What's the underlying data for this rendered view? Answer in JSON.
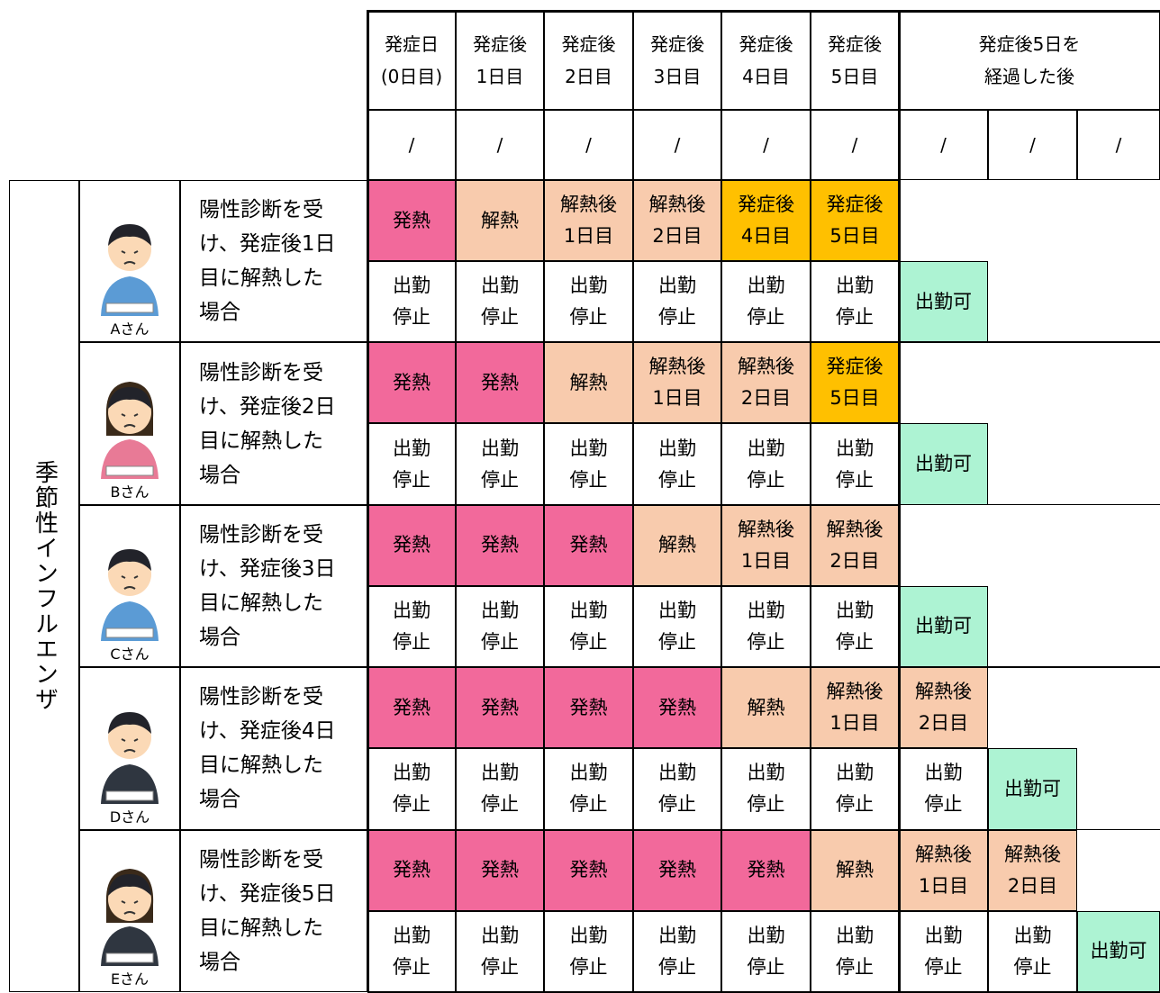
{
  "header": {
    "days": [
      [
        "発症日",
        "(0日目)"
      ],
      [
        "発症後",
        "1日目"
      ],
      [
        "発症後",
        "2日目"
      ],
      [
        "発症後",
        "3日目"
      ],
      [
        "発症後",
        "4日目"
      ],
      [
        "発症後",
        "5日目"
      ]
    ],
    "after": [
      "発症後5日を",
      "経過した後"
    ],
    "dates": [
      "/",
      "/",
      "/",
      "/",
      "/",
      "/",
      "/",
      "/",
      "/"
    ]
  },
  "category": "季節性インフルエンザ",
  "people": [
    {
      "name": "Aさん",
      "description": [
        "陽性診断を受",
        "け、発症後1日",
        "目に解熱した",
        "場合"
      ],
      "status": [
        {
          "text": [
            "発熱"
          ],
          "color": "#f2699b"
        },
        {
          "text": [
            "解熱"
          ],
          "color": "#f8cbad"
        },
        {
          "text": [
            "解熱後",
            "1日目"
          ],
          "color": "#f8cbad"
        },
        {
          "text": [
            "解熱後",
            "2日目"
          ],
          "color": "#f8cbad"
        },
        {
          "text": [
            "発症後",
            "4日目"
          ],
          "color": "#ffc000"
        },
        {
          "text": [
            "発症後",
            "5日目"
          ],
          "color": "#ffc000"
        }
      ],
      "work": [
        {
          "text": [
            "出勤",
            "停止"
          ],
          "color": "#ffffff"
        },
        {
          "text": [
            "出勤",
            "停止"
          ],
          "color": "#ffffff"
        },
        {
          "text": [
            "出勤",
            "停止"
          ],
          "color": "#ffffff"
        },
        {
          "text": [
            "出勤",
            "停止"
          ],
          "color": "#ffffff"
        },
        {
          "text": [
            "出勤",
            "停止"
          ],
          "color": "#ffffff"
        },
        {
          "text": [
            "出勤",
            "停止"
          ],
          "color": "#ffffff"
        },
        {
          "text": [
            "出勤可"
          ],
          "color": "#adf3d3"
        }
      ]
    },
    {
      "name": "Bさん",
      "description": [
        "陽性診断を受",
        "け、発症後2日",
        "目に解熱した",
        "場合"
      ],
      "status": [
        {
          "text": [
            "発熱"
          ],
          "color": "#f2699b"
        },
        {
          "text": [
            "発熱"
          ],
          "color": "#f2699b"
        },
        {
          "text": [
            "解熱"
          ],
          "color": "#f8cbad"
        },
        {
          "text": [
            "解熱後",
            "1日目"
          ],
          "color": "#f8cbad"
        },
        {
          "text": [
            "解熱後",
            "2日目"
          ],
          "color": "#f8cbad"
        },
        {
          "text": [
            "発症後",
            "5日目"
          ],
          "color": "#ffc000"
        }
      ],
      "work": [
        {
          "text": [
            "出勤",
            "停止"
          ],
          "color": "#ffffff"
        },
        {
          "text": [
            "出勤",
            "停止"
          ],
          "color": "#ffffff"
        },
        {
          "text": [
            "出勤",
            "停止"
          ],
          "color": "#ffffff"
        },
        {
          "text": [
            "出勤",
            "停止"
          ],
          "color": "#ffffff"
        },
        {
          "text": [
            "出勤",
            "停止"
          ],
          "color": "#ffffff"
        },
        {
          "text": [
            "出勤",
            "停止"
          ],
          "color": "#ffffff"
        },
        {
          "text": [
            "出勤可"
          ],
          "color": "#adf3d3"
        }
      ]
    },
    {
      "name": "Cさん",
      "description": [
        "陽性診断を受",
        "け、発症後3日",
        "目に解熱した",
        "場合"
      ],
      "status": [
        {
          "text": [
            "発熱"
          ],
          "color": "#f2699b"
        },
        {
          "text": [
            "発熱"
          ],
          "color": "#f2699b"
        },
        {
          "text": [
            "発熱"
          ],
          "color": "#f2699b"
        },
        {
          "text": [
            "解熱"
          ],
          "color": "#f8cbad"
        },
        {
          "text": [
            "解熱後",
            "1日目"
          ],
          "color": "#f8cbad"
        },
        {
          "text": [
            "解熱後",
            "2日目"
          ],
          "color": "#f8cbad"
        }
      ],
      "work": [
        {
          "text": [
            "出勤",
            "停止"
          ],
          "color": "#ffffff"
        },
        {
          "text": [
            "出勤",
            "停止"
          ],
          "color": "#ffffff"
        },
        {
          "text": [
            "出勤",
            "停止"
          ],
          "color": "#ffffff"
        },
        {
          "text": [
            "出勤",
            "停止"
          ],
          "color": "#ffffff"
        },
        {
          "text": [
            "出勤",
            "停止"
          ],
          "color": "#ffffff"
        },
        {
          "text": [
            "出勤",
            "停止"
          ],
          "color": "#ffffff"
        },
        {
          "text": [
            "出勤可"
          ],
          "color": "#adf3d3"
        }
      ]
    },
    {
      "name": "Dさん",
      "description": [
        "陽性診断を受",
        "け、発症後4日",
        "目に解熱した",
        "場合"
      ],
      "status": [
        {
          "text": [
            "発熱"
          ],
          "color": "#f2699b"
        },
        {
          "text": [
            "発熱"
          ],
          "color": "#f2699b"
        },
        {
          "text": [
            "発熱"
          ],
          "color": "#f2699b"
        },
        {
          "text": [
            "発熱"
          ],
          "color": "#f2699b"
        },
        {
          "text": [
            "解熱"
          ],
          "color": "#f8cbad"
        },
        {
          "text": [
            "解熱後",
            "1日目"
          ],
          "color": "#f8cbad"
        },
        {
          "text": [
            "解熱後",
            "2日目"
          ],
          "color": "#f8cbad"
        }
      ],
      "work": [
        {
          "text": [
            "出勤",
            "停止"
          ],
          "color": "#ffffff"
        },
        {
          "text": [
            "出勤",
            "停止"
          ],
          "color": "#ffffff"
        },
        {
          "text": [
            "出勤",
            "停止"
          ],
          "color": "#ffffff"
        },
        {
          "text": [
            "出勤",
            "停止"
          ],
          "color": "#ffffff"
        },
        {
          "text": [
            "出勤",
            "停止"
          ],
          "color": "#ffffff"
        },
        {
          "text": [
            "出勤",
            "停止"
          ],
          "color": "#ffffff"
        },
        {
          "text": [
            "出勤",
            "停止"
          ],
          "color": "#ffffff"
        },
        {
          "text": [
            "出勤可"
          ],
          "color": "#adf3d3"
        }
      ]
    },
    {
      "name": "Eさん",
      "description": [
        "陽性診断を受",
        "け、発症後5日",
        "目に解熱した",
        "場合"
      ],
      "status": [
        {
          "text": [
            "発熱"
          ],
          "color": "#f2699b"
        },
        {
          "text": [
            "発熱"
          ],
          "color": "#f2699b"
        },
        {
          "text": [
            "発熱"
          ],
          "color": "#f2699b"
        },
        {
          "text": [
            "発熱"
          ],
          "color": "#f2699b"
        },
        {
          "text": [
            "発熱"
          ],
          "color": "#f2699b"
        },
        {
          "text": [
            "解熱"
          ],
          "color": "#f8cbad"
        },
        {
          "text": [
            "解熱後",
            "1日目"
          ],
          "color": "#f8cbad"
        },
        {
          "text": [
            "解熱後",
            "2日目"
          ],
          "color": "#f8cbad"
        }
      ],
      "work": [
        {
          "text": [
            "出勤",
            "停止"
          ],
          "color": "#ffffff"
        },
        {
          "text": [
            "出勤",
            "停止"
          ],
          "color": "#ffffff"
        },
        {
          "text": [
            "出勤",
            "停止"
          ],
          "color": "#ffffff"
        },
        {
          "text": [
            "出勤",
            "停止"
          ],
          "color": "#ffffff"
        },
        {
          "text": [
            "出勤",
            "停止"
          ],
          "color": "#ffffff"
        },
        {
          "text": [
            "出勤",
            "停止"
          ],
          "color": "#ffffff"
        },
        {
          "text": [
            "出勤",
            "停止"
          ],
          "color": "#ffffff"
        },
        {
          "text": [
            "出勤",
            "停止"
          ],
          "color": "#ffffff"
        },
        {
          "text": [
            "出勤可"
          ],
          "color": "#adf3d3"
        }
      ]
    }
  ]
}
